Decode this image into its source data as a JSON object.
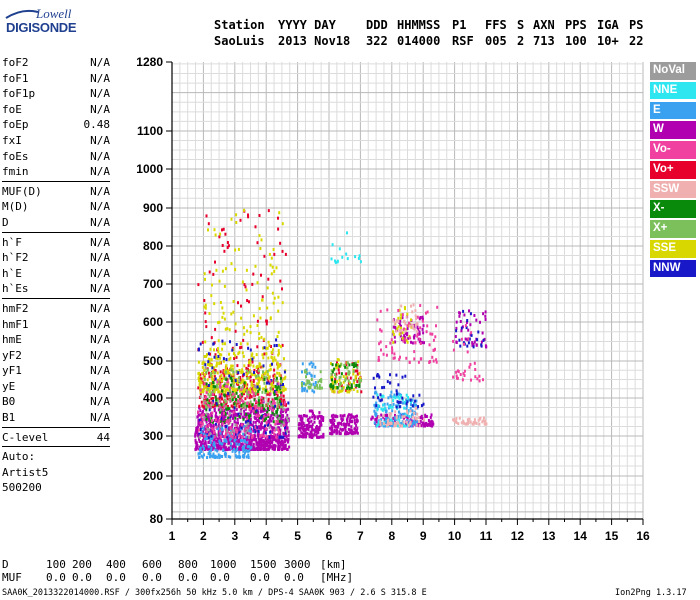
{
  "logo": {
    "line1": "Lowell",
    "line2": "DIGISONDE"
  },
  "header": {
    "line1": [
      "Station",
      "YYYY DAY",
      "DDD",
      "HHMMSS",
      "P1",
      "FFS",
      "S",
      "AXN",
      "PPS",
      "IGA",
      "PS"
    ],
    "line2": [
      "SaoLuis",
      "2013 Nov18",
      "322",
      "014000",
      "RSF",
      "005",
      "2",
      "713",
      "100",
      "10+",
      "22"
    ]
  },
  "params": [
    {
      "k": "foF2",
      "v": "N/A"
    },
    {
      "k": "foF1",
      "v": "N/A"
    },
    {
      "k": "foF1p",
      "v": "N/A"
    },
    {
      "k": "foE",
      "v": "N/A"
    },
    {
      "k": "foEp",
      "v": "0.48"
    },
    {
      "k": "fxI",
      "v": "N/A"
    },
    {
      "k": "foEs",
      "v": "N/A"
    },
    {
      "k": "fmin",
      "v": "N/A"
    },
    {
      "k": "MUF(D)",
      "v": "N/A",
      "sep": true
    },
    {
      "k": "M(D)",
      "v": "N/A"
    },
    {
      "k": "D",
      "v": "N/A"
    },
    {
      "k": "h`F",
      "v": "N/A",
      "sep": true
    },
    {
      "k": "h`F2",
      "v": "N/A"
    },
    {
      "k": "h`E",
      "v": "N/A"
    },
    {
      "k": "h`Es",
      "v": "N/A"
    },
    {
      "k": "hmF2",
      "v": "N/A",
      "sep": true
    },
    {
      "k": "hmF1",
      "v": "N/A"
    },
    {
      "k": "hmE",
      "v": "N/A"
    },
    {
      "k": "yF2",
      "v": "N/A"
    },
    {
      "k": "yF1",
      "v": "N/A"
    },
    {
      "k": "yE",
      "v": "N/A"
    },
    {
      "k": "B0",
      "v": "N/A"
    },
    {
      "k": "B1",
      "v": "N/A"
    },
    {
      "k": "C-level",
      "v": "44",
      "sep": true
    },
    {
      "k": "Auto:",
      "v": "",
      "sep": true
    },
    {
      "k": "Artist5",
      "v": ""
    },
    {
      "k": "500200",
      "v": ""
    }
  ],
  "legend": [
    {
      "label": "NoVal",
      "bg": "#9c9c9c",
      "fg": "#ffffff"
    },
    {
      "label": "NNE",
      "bg": "#2ee6f0",
      "fg": "#ffffff"
    },
    {
      "label": "E",
      "bg": "#3aa0f0",
      "fg": "#ffffff"
    },
    {
      "label": "W",
      "bg": "#b000b0",
      "fg": "#ffffff"
    },
    {
      "label": "Vo-",
      "bg": "#f040a0",
      "fg": "#ffffff"
    },
    {
      "label": "Vo+",
      "bg": "#e8002c",
      "fg": "#ffffff"
    },
    {
      "label": "SSW",
      "bg": "#f0b0b0",
      "fg": "#ffffff"
    },
    {
      "label": "X-",
      "bg": "#0a8a0a",
      "fg": "#ffffff"
    },
    {
      "label": "X+",
      "bg": "#7cc05c",
      "fg": "#ffffff"
    },
    {
      "label": "SSE",
      "bg": "#d8d800",
      "fg": "#ffffff"
    },
    {
      "label": "NNW",
      "bg": "#1818c8",
      "fg": "#ffffff"
    }
  ],
  "footer": {
    "d_label": "D",
    "d_values": [
      "100",
      "200",
      "400",
      "600",
      "800",
      "1000",
      "1500",
      "3000"
    ],
    "d_unit": "[km]",
    "muf_label": "MUF",
    "muf_values": [
      "0.0",
      "0.0",
      "0.0",
      "0.0",
      "0.0",
      "0.0",
      "0.0",
      "0.0"
    ],
    "muf_unit": "[MHz]",
    "file_info": "SAA0K_2013322014000.RSF / 300fx256h 50 kHz 5.0 km / DPS-4 SAA0K 903 / 2.6 S 315.8 E",
    "version": "Ion2Png 1.3.17"
  },
  "chart_data": {
    "type": "scatter",
    "title": "",
    "xlabel": "",
    "ylabel": "",
    "xlim": [
      1,
      16
    ],
    "xticks": [
      1,
      2,
      3,
      4,
      5,
      6,
      7,
      8,
      9,
      10,
      11,
      12,
      13,
      14,
      15,
      16
    ],
    "yticks": [
      80,
      200,
      300,
      400,
      500,
      600,
      700,
      800,
      900,
      1000,
      1100,
      1280
    ],
    "y_scale": "nonlinear",
    "grid": true,
    "series": [
      {
        "name": "W",
        "color": "#b000b0",
        "clusters": [
          {
            "x": [
              1.7,
              4.7
            ],
            "y": [
              270,
              380
            ],
            "n": 900
          },
          {
            "x": [
              5.0,
              5.8
            ],
            "y": [
              300,
              370
            ],
            "n": 140
          },
          {
            "x": [
              6.0,
              6.9
            ],
            "y": [
              310,
              360
            ],
            "n": 120
          },
          {
            "x": [
              7.3,
              9.3
            ],
            "y": [
              330,
              360
            ],
            "n": 110
          },
          {
            "x": [
              8.0,
              9.0
            ],
            "y": [
              550,
              620
            ],
            "n": 60
          },
          {
            "x": [
              10.0,
              11.0
            ],
            "y": [
              540,
              640
            ],
            "n": 40
          }
        ]
      },
      {
        "name": "Vo+",
        "color": "#e8002c",
        "clusters": [
          {
            "x": [
              1.8,
              4.6
            ],
            "y": [
              380,
              480
            ],
            "n": 260
          },
          {
            "x": [
              1.8,
              4.6
            ],
            "y": [
              480,
              900
            ],
            "n": 90
          },
          {
            "x": [
              6.0,
              7.0
            ],
            "y": [
              420,
              500
            ],
            "n": 40
          }
        ]
      },
      {
        "name": "SSE",
        "color": "#d8d800",
        "clusters": [
          {
            "x": [
              1.8,
              4.6
            ],
            "y": [
              420,
              520
            ],
            "n": 300
          },
          {
            "x": [
              2.0,
              4.5
            ],
            "y": [
              520,
              900
            ],
            "n": 120
          },
          {
            "x": [
              6.0,
              7.0
            ],
            "y": [
              420,
              510
            ],
            "n": 60
          },
          {
            "x": [
              8.0,
              8.6
            ],
            "y": [
              550,
              650
            ],
            "n": 25
          }
        ]
      },
      {
        "name": "E",
        "color": "#3aa0f0",
        "clusters": [
          {
            "x": [
              1.8,
              3.5
            ],
            "y": [
              250,
              330
            ],
            "n": 160
          },
          {
            "x": [
              7.4,
              8.8
            ],
            "y": [
              330,
              420
            ],
            "n": 130
          },
          {
            "x": [
              5.1,
              5.6
            ],
            "y": [
              420,
              500
            ],
            "n": 30
          }
        ]
      },
      {
        "name": "NNE",
        "color": "#2ee6f0",
        "clusters": [
          {
            "x": [
              7.5,
              8.6
            ],
            "y": [
              330,
              420
            ],
            "n": 60
          },
          {
            "x": [
              6.0,
              7.0
            ],
            "y": [
              760,
              840
            ],
            "n": 15
          }
        ]
      },
      {
        "name": "X+",
        "color": "#7cc05c",
        "clusters": [
          {
            "x": [
              2.0,
              4.5
            ],
            "y": [
              380,
              480
            ],
            "n": 130
          },
          {
            "x": [
              6.0,
              7.0
            ],
            "y": [
              430,
              500
            ],
            "n": 40
          },
          {
            "x": [
              5.1,
              5.8
            ],
            "y": [
              430,
              480
            ],
            "n": 30
          }
        ]
      },
      {
        "name": "X-",
        "color": "#0a8a0a",
        "clusters": [
          {
            "x": [
              2.0,
              4.5
            ],
            "y": [
              340,
              460
            ],
            "n": 110
          },
          {
            "x": [
              6.0,
              7.0
            ],
            "y": [
              430,
              500
            ],
            "n": 30
          }
        ]
      },
      {
        "name": "NNW",
        "color": "#1818c8",
        "clusters": [
          {
            "x": [
              1.8,
              4.7
            ],
            "y": [
              300,
              560
            ],
            "n": 100
          },
          {
            "x": [
              7.3,
              9.0
            ],
            "y": [
              380,
              470
            ],
            "n": 40
          },
          {
            "x": [
              10.0,
              11.0
            ],
            "y": [
              540,
              640
            ],
            "n": 20
          }
        ]
      },
      {
        "name": "Vo-",
        "color": "#f040a0",
        "clusters": [
          {
            "x": [
              1.8,
              4.6
            ],
            "y": [
              300,
              450
            ],
            "n": 160
          },
          {
            "x": [
              7.5,
              9.5
            ],
            "y": [
              500,
              650
            ],
            "n": 70
          },
          {
            "x": [
              9.9,
              10.9
            ],
            "y": [
              450,
              600
            ],
            "n": 30
          }
        ]
      },
      {
        "name": "SSW",
        "color": "#f0b0b0",
        "clusters": [
          {
            "x": [
              7.5,
              9.0
            ],
            "y": [
              330,
              380
            ],
            "n": 50
          },
          {
            "x": [
              9.9,
              11.0
            ],
            "y": [
              335,
              352
            ],
            "n": 40
          },
          {
            "x": [
              8.0,
              8.8
            ],
            "y": [
              580,
              650
            ],
            "n": 30
          }
        ]
      },
      {
        "name": "NoVal",
        "color": "#9c9c9c",
        "clusters": [
          {
            "x": [
              1.8,
              4.7
            ],
            "y": [
              300,
              500
            ],
            "n": 40
          }
        ]
      }
    ]
  }
}
